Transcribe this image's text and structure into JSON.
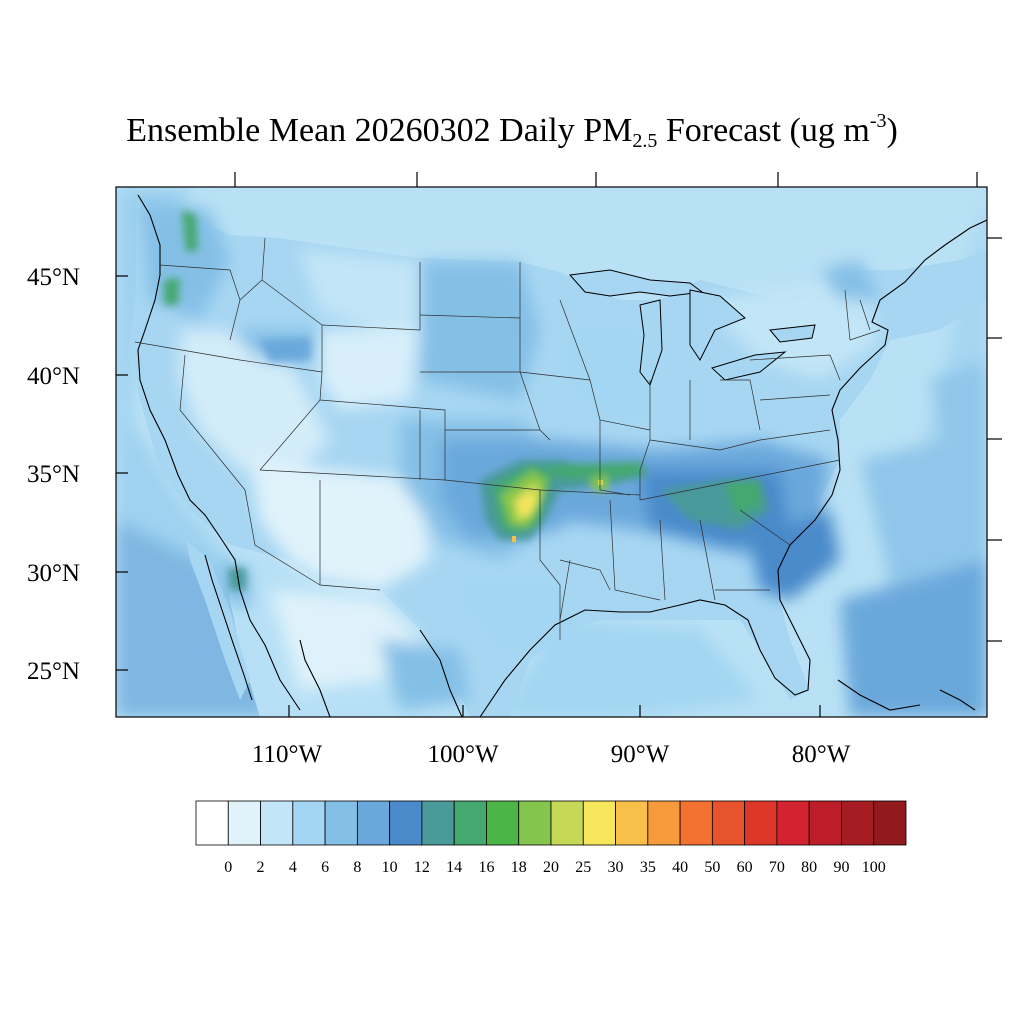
{
  "title": {
    "main": "Ensemble Mean 20260302 Daily PM",
    "sub": "2.5",
    "after": " Forecast (ug m",
    "sup": "-3",
    "end": ")"
  },
  "map_axes": {
    "lat_labels": [
      "45°N",
      "40°N",
      "35°N",
      "30°N",
      "25°N"
    ],
    "lon_labels": [
      "110°W",
      "100°W",
      "90°W",
      "80°W"
    ]
  },
  "colorbar": {
    "labels": [
      "0",
      "2",
      "4",
      "6",
      "8",
      "10",
      "12",
      "14",
      "16",
      "18",
      "20",
      "25",
      "30",
      "35",
      "40",
      "50",
      "60",
      "70",
      "80",
      "90",
      "100"
    ],
    "colors": [
      "#ffffff",
      "#e0f3fb",
      "#c2e6f7",
      "#a2d6f2",
      "#84bfe6",
      "#6aa8dc",
      "#4a8acb",
      "#4a9a9a",
      "#45a86f",
      "#4cb548",
      "#84c54e",
      "#c6d957",
      "#f7e65b",
      "#f8bf4a",
      "#f79a3c",
      "#f37231",
      "#e6532c",
      "#dd3729",
      "#d32230",
      "#bd1d28",
      "#a71b22",
      "#921a1e"
    ]
  },
  "map_colors": {
    "ocean": "#b9e1f5",
    "land_base": "#a7d6f2",
    "coast": "#000000",
    "states": "#3a3a3a"
  }
}
